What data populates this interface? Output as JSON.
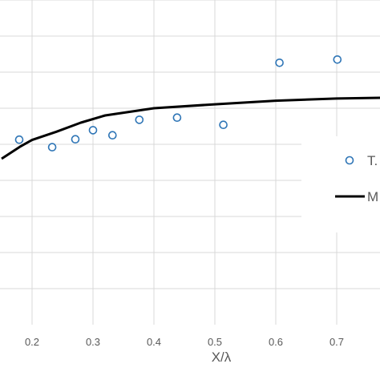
{
  "chart_data": {
    "type": "scatter",
    "xlabel": "X/λ",
    "ylabel": "",
    "title": "",
    "xlim": [
      0.15,
      0.78
    ],
    "ylim": [
      0.0,
      0.9
    ],
    "grid": true,
    "x_ticks": [
      "0.2",
      "0.3",
      "0.4",
      "0.5",
      "0.6",
      "0.7"
    ],
    "x_tick_values": [
      0.2,
      0.3,
      0.4,
      0.5,
      0.6,
      0.7
    ],
    "series": [
      {
        "name": "T.",
        "kind": "scatter",
        "color": "#2e75b6",
        "x": [
          0.179,
          0.233,
          0.271,
          0.3,
          0.332,
          0.376,
          0.438,
          0.514,
          0.606,
          0.701
        ],
        "y": [
          0.513,
          0.492,
          0.514,
          0.539,
          0.525,
          0.568,
          0.574,
          0.554,
          0.726,
          0.735
        ]
      },
      {
        "name": "M",
        "kind": "line",
        "color": "#000000",
        "x": [
          0.15,
          0.18,
          0.2,
          0.24,
          0.28,
          0.32,
          0.36,
          0.4,
          0.5,
          0.6,
          0.7,
          0.78
        ],
        "y": [
          0.46,
          0.493,
          0.512,
          0.535,
          0.56,
          0.58,
          0.59,
          0.6,
          0.611,
          0.621,
          0.627,
          0.629
        ]
      }
    ],
    "legend": {
      "placement": "right"
    }
  }
}
